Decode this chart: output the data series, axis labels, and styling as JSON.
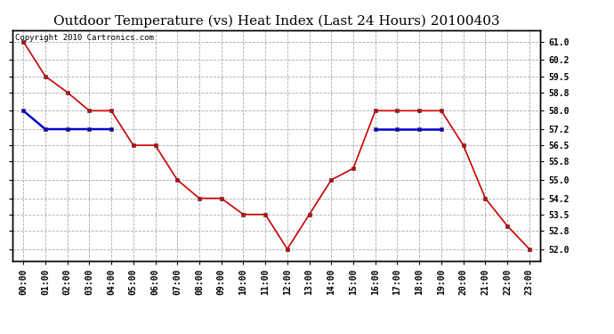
{
  "title": "Outdoor Temperature (vs) Heat Index (Last 24 Hours) 20100403",
  "copyright_text": "Copyright 2010 Cartronics.com",
  "hours": [
    "00:00",
    "01:00",
    "02:00",
    "03:00",
    "04:00",
    "05:00",
    "06:00",
    "07:00",
    "08:00",
    "09:00",
    "10:00",
    "11:00",
    "12:00",
    "13:00",
    "14:00",
    "15:00",
    "16:00",
    "17:00",
    "18:00",
    "19:00",
    "20:00",
    "21:00",
    "22:00",
    "23:00"
  ],
  "temp": [
    61.0,
    59.5,
    58.8,
    58.0,
    58.0,
    56.5,
    56.5,
    55.0,
    54.2,
    54.2,
    53.5,
    53.5,
    52.0,
    53.5,
    55.0,
    55.5,
    58.0,
    58.0,
    58.0,
    58.0,
    56.5,
    54.2,
    53.0,
    52.0
  ],
  "heat_index_segments": [
    {
      "x": [
        0,
        1,
        2,
        3,
        4
      ],
      "y": [
        58.0,
        57.2,
        57.2,
        57.2,
        57.2
      ]
    },
    {
      "x": [
        16,
        17,
        18,
        19
      ],
      "y": [
        57.2,
        57.2,
        57.2,
        57.2
      ]
    }
  ],
  "ylim": [
    51.5,
    61.5
  ],
  "yticks": [
    52.0,
    52.8,
    53.5,
    54.2,
    55.0,
    55.8,
    56.5,
    57.2,
    58.0,
    58.8,
    59.5,
    60.2,
    61.0
  ],
  "temp_color": "#cc0000",
  "heat_index_color": "#0000cc",
  "bg_color": "#ffffff",
  "grid_color": "#aaaaaa",
  "title_fontsize": 11,
  "tick_fontsize": 7,
  "copyright_fontsize": 6.5
}
